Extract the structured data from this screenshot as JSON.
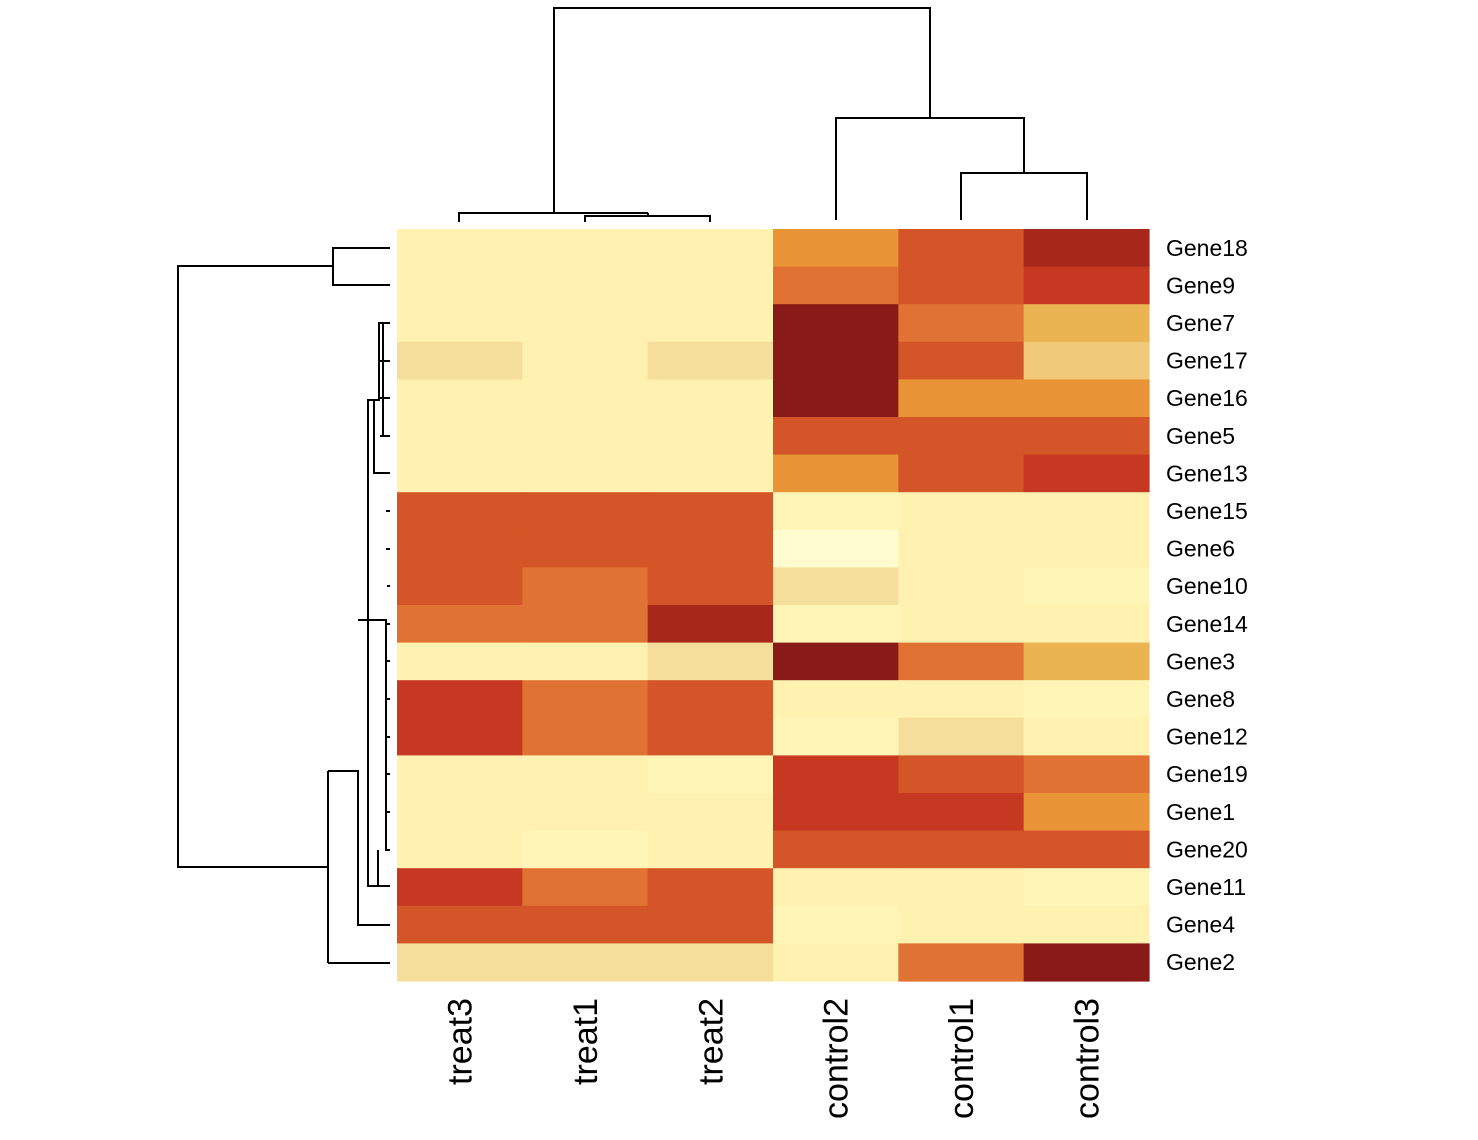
{
  "chart_data": {
    "type": "heatmap",
    "title": "",
    "columns": [
      "treat3",
      "treat1",
      "treat2",
      "control2",
      "control1",
      "control3"
    ],
    "rows": [
      "Gene18",
      "Gene9",
      "Gene7",
      "Gene17",
      "Gene16",
      "Gene5",
      "Gene13",
      "Gene15",
      "Gene6",
      "Gene10",
      "Gene14",
      "Gene3",
      "Gene8",
      "Gene12",
      "Gene19",
      "Gene1",
      "Gene20",
      "Gene11",
      "Gene4",
      "Gene2"
    ],
    "values": [
      [
        2,
        2,
        2,
        6,
        8,
        10
      ],
      [
        2,
        2,
        2,
        7,
        8,
        9
      ],
      [
        2,
        2,
        2,
        11,
        7,
        5
      ],
      [
        3,
        2,
        3,
        11,
        8,
        4
      ],
      [
        2,
        2,
        2,
        11,
        6,
        6
      ],
      [
        2,
        2,
        2,
        8,
        8,
        8
      ],
      [
        2,
        2,
        2,
        6,
        8,
        9
      ],
      [
        8,
        8,
        8,
        1,
        2,
        2
      ],
      [
        8,
        8,
        8,
        0,
        2,
        2
      ],
      [
        8,
        7,
        8,
        3,
        2,
        1
      ],
      [
        7,
        7,
        10,
        1,
        2,
        2
      ],
      [
        2,
        2,
        3,
        11,
        7,
        5
      ],
      [
        9,
        7,
        8,
        2,
        2,
        1
      ],
      [
        9,
        7,
        8,
        1,
        3,
        2
      ],
      [
        2,
        2,
        1,
        9,
        8,
        7
      ],
      [
        2,
        2,
        2,
        9,
        9,
        6
      ],
      [
        2,
        1,
        2,
        8,
        8,
        8
      ],
      [
        9,
        7,
        8,
        2,
        2,
        1
      ],
      [
        8,
        8,
        8,
        1,
        2,
        2
      ],
      [
        3,
        3,
        3,
        2,
        7,
        11
      ]
    ],
    "color_scale": [
      "#fffdd0",
      "#fff5b6",
      "#fff1b0",
      "#f5de9c",
      "#f0c979",
      "#ebb453",
      "#e89437",
      "#e07233",
      "#d45527",
      "#c63821",
      "#a7271b",
      "#881a18",
      "#640e1f"
    ],
    "legend": "none"
  }
}
